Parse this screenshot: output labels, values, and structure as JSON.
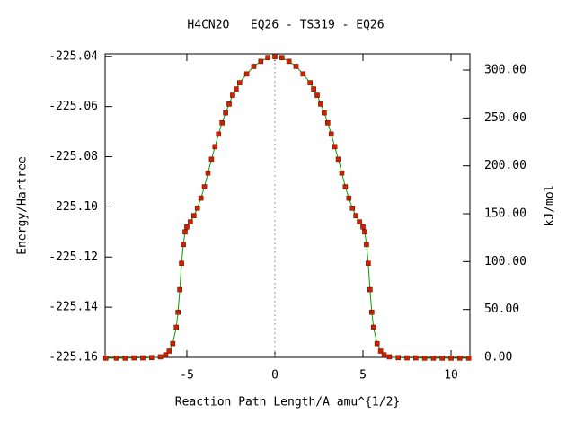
{
  "chart_data": {
    "type": "line",
    "title": "H4CN2O   EQ26 - TS319 - EQ26",
    "x_label": "Reaction Path Length/A amu^{1/2}",
    "y_label": "Energy/Hartree",
    "y2_label": "kJ/mol",
    "x": [
      -9.6,
      -9,
      -8.5,
      -8,
      -7.5,
      -7,
      -6.5,
      -6.2,
      -6,
      -5.8,
      -5.6,
      -5.5,
      -5.4,
      -5.3,
      -5.2,
      -5.1,
      -5,
      -4.8,
      -4.6,
      -4.4,
      -4.2,
      -4,
      -3.8,
      -3.6,
      -3.4,
      -3.2,
      -3,
      -2.8,
      -2.6,
      -2.4,
      -2.2,
      -2,
      -1.6,
      -1.2,
      -0.8,
      -0.4,
      0,
      0.4,
      0.8,
      1.2,
      1.6,
      2,
      2.2,
      2.4,
      2.6,
      2.8,
      3,
      3.2,
      3.4,
      3.6,
      3.8,
      4,
      4.2,
      4.4,
      4.6,
      4.8,
      5,
      5.1,
      5.2,
      5.3,
      5.4,
      5.5,
      5.6,
      5.8,
      6,
      6.2,
      6.5,
      7,
      7.5,
      8,
      8.5,
      9,
      9.5,
      10,
      10.5,
      11
    ],
    "series": [
      {
        "name": "EQ26 - TS319 - EQ26",
        "color": "#cc2200",
        "line_color": "#00a000",
        "values": [
          -225.1603,
          -225.1603,
          -225.1603,
          -225.1602,
          -225.1602,
          -225.1601,
          -225.1598,
          -225.159,
          -225.1575,
          -225.1545,
          -225.148,
          -225.142,
          -225.133,
          -225.1225,
          -225.115,
          -225.11,
          -225.108,
          -225.106,
          -225.1035,
          -225.1005,
          -225.0965,
          -225.092,
          -225.0865,
          -225.081,
          -225.076,
          -225.071,
          -225.0665,
          -225.0625,
          -225.059,
          -225.0555,
          -225.053,
          -225.0505,
          -225.047,
          -225.044,
          -225.042,
          -225.0405,
          -225.0401,
          -225.0405,
          -225.042,
          -225.044,
          -225.047,
          -225.0505,
          -225.053,
          -225.0555,
          -225.059,
          -225.0625,
          -225.0665,
          -225.071,
          -225.076,
          -225.081,
          -225.0865,
          -225.092,
          -225.0965,
          -225.1005,
          -225.1035,
          -225.106,
          -225.108,
          -225.11,
          -225.115,
          -225.1225,
          -225.133,
          -225.142,
          -225.148,
          -225.1545,
          -225.1575,
          -225.159,
          -225.1598,
          -225.1601,
          -225.1602,
          -225.1602,
          -225.1603,
          -225.1603,
          -225.1603,
          -225.1603,
          -225.1603,
          -225.1603
        ]
      }
    ],
    "xlim": [
      -9.64,
      11.07
    ],
    "ylim": [
      -225.16,
      -225.039
    ],
    "y2lim": [
      0,
      316.9
    ],
    "xticks": [
      -5,
      0,
      5,
      10
    ],
    "yticks": [
      -225.04,
      -225.06,
      -225.08,
      {
        "value": -225.1,
        "label": "-225.10"
      },
      -225.12,
      -225.14,
      -225.16
    ],
    "y2ticks": [
      {
        "value": 300,
        "label": "300.00"
      },
      {
        "value": 250,
        "label": "250.00"
      },
      {
        "value": 200,
        "label": "200.00"
      },
      {
        "value": 150,
        "label": "150.00"
      },
      {
        "value": 100,
        "label": "100.00"
      },
      {
        "value": 50,
        "label": "50.00"
      },
      {
        "value": 0,
        "label": "0.00"
      }
    ],
    "vline": 0
  }
}
